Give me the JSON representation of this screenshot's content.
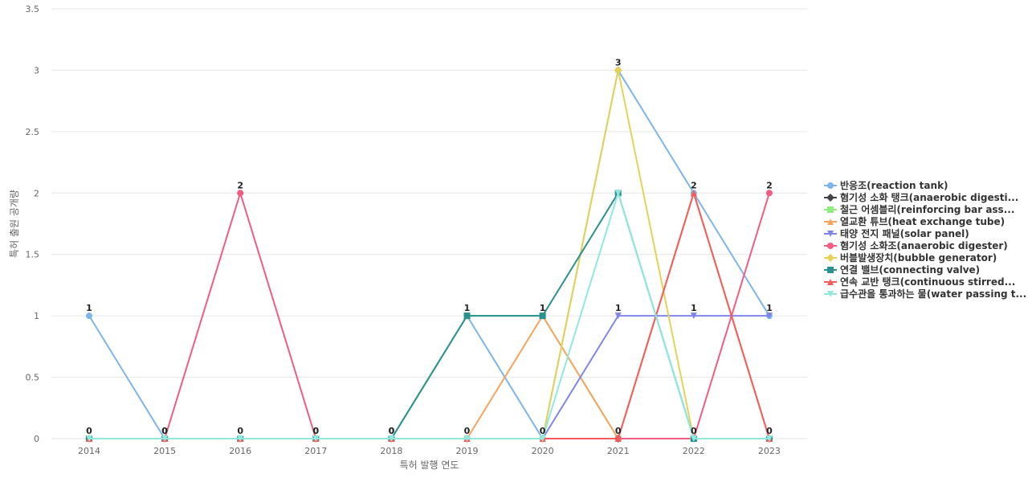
{
  "chart_data": {
    "type": "line",
    "title": "",
    "xlabel": "특허 발행 연도",
    "ylabel": "특허 출원 공개량",
    "ylim": [
      0,
      3.5
    ],
    "yticks": [
      0,
      0.5,
      1,
      1.5,
      2,
      2.5,
      3,
      3.5
    ],
    "ytick_labels": [
      "0",
      "0.5",
      "1",
      "1.5",
      "2",
      "2.5",
      "3",
      "3.5"
    ],
    "categories": [
      "2014",
      "2015",
      "2016",
      "2017",
      "2018",
      "2019",
      "2020",
      "2021",
      "2022",
      "2023"
    ],
    "grid": true,
    "legend_position": "right",
    "data_labels": [
      1,
      0,
      2,
      0,
      0,
      1,
      1,
      3,
      2,
      2
    ],
    "data_labels_low": [
      0,
      0,
      0,
      0,
      0,
      0,
      0,
      1,
      1,
      1
    ],
    "data_labels_bottom": [
      null,
      null,
      null,
      null,
      null,
      null,
      null,
      0,
      0,
      0
    ],
    "series": [
      {
        "name": "반응조(reaction tank)",
        "color": "#7cb5ec",
        "marker": "circle",
        "values": [
          1,
          0,
          0,
          0,
          0,
          1,
          0,
          3,
          2,
          1
        ]
      },
      {
        "name": "혐기성 소화 탱크(anaerobic digesti...",
        "color": "#434348",
        "marker": "diamond",
        "values": [
          0,
          0,
          0,
          0,
          0,
          0,
          0,
          0,
          0,
          0
        ]
      },
      {
        "name": "철근 어셈블리(reinforcing bar ass...",
        "color": "#90ed7d",
        "marker": "square",
        "values": [
          0,
          0,
          0,
          0,
          0,
          1,
          1,
          0,
          0,
          0
        ]
      },
      {
        "name": "열교환 튜브(heat exchange tube)",
        "color": "#f7a35c",
        "marker": "triangle",
        "values": [
          0,
          0,
          0,
          0,
          0,
          0,
          1,
          0,
          2,
          0
        ]
      },
      {
        "name": "태양 전지 패널(solar panel)",
        "color": "#8085e9",
        "marker": "triangle-down",
        "values": [
          0,
          0,
          0,
          0,
          0,
          0,
          0,
          1,
          1,
          1
        ]
      },
      {
        "name": "혐기성 소화조(anaerobic digester)",
        "color": "#f15c80",
        "marker": "circle",
        "values": [
          0,
          0,
          2,
          0,
          0,
          0,
          0,
          0,
          0,
          2
        ]
      },
      {
        "name": "버블발생장치(bubble generator)",
        "color": "#e4d354",
        "marker": "diamond",
        "values": [
          0,
          0,
          0,
          0,
          0,
          0,
          0,
          3,
          0,
          0
        ]
      },
      {
        "name": "연결 밸브(connecting valve)",
        "color": "#2b908f",
        "marker": "square",
        "values": [
          0,
          0,
          0,
          0,
          0,
          1,
          1,
          2,
          0,
          0
        ]
      },
      {
        "name": "연속 교반 탱크(continuous stirred...",
        "color": "#f45b5b",
        "marker": "triangle",
        "values": [
          0,
          0,
          0,
          0,
          0,
          0,
          0,
          0,
          2,
          0
        ]
      },
      {
        "name": "급수관을 통과하는 물(water passing t...",
        "color": "#91e8e1",
        "marker": "triangle-down",
        "values": [
          0,
          0,
          0,
          0,
          0,
          0,
          0,
          2,
          0,
          0
        ]
      }
    ]
  }
}
